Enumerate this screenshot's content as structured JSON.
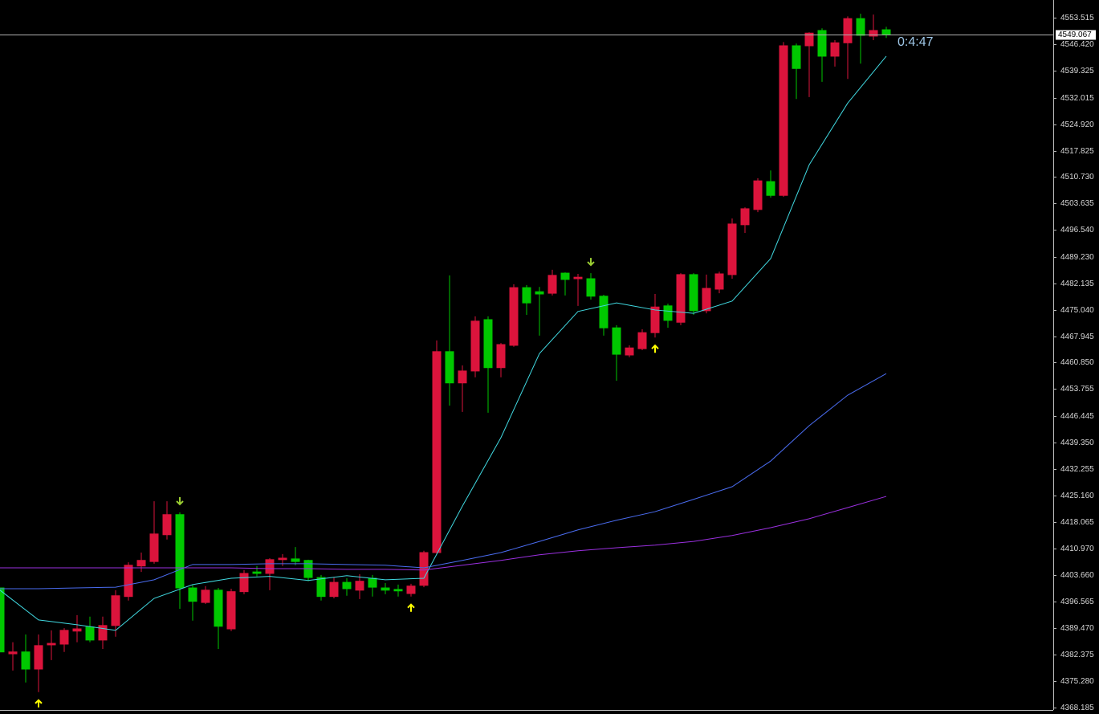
{
  "chart_data": {
    "type": "candlestick",
    "ylim": [
      4367.5,
      4558.3
    ],
    "yticks": [
      4553.515,
      {
        "value": 4546.42,
        "label": "4546.420"
      },
      4539.325,
      4532.015,
      {
        "value": 4524.92,
        "label": "4524.920"
      },
      4517.825,
      {
        "value": 4510.73,
        "label": "4510.730"
      },
      4503.635,
      {
        "value": 4496.54,
        "label": "4496.540"
      },
      {
        "value": 4489.23,
        "label": "4489.230"
      },
      4482.135,
      {
        "value": 4475.04,
        "label": "4475.040"
      },
      4467.945,
      {
        "value": 4460.85,
        "label": "4460.850"
      },
      4453.755,
      4446.445,
      {
        "value": 4439.35,
        "label": "4439.350"
      },
      4432.255,
      {
        "value": 4425.16,
        "label": "4425.160"
      },
      4418.065,
      {
        "value": 4410.97,
        "label": "4410.970"
      },
      {
        "value": 4403.66,
        "label": "4403.660"
      },
      4396.565,
      {
        "value": 4389.47,
        "label": "4389.470"
      },
      4382.375,
      {
        "value": 4375.28,
        "label": "4375.280"
      },
      4368.185
    ],
    "open": [
      4400.3,
      4382.6,
      4383.1,
      4378.5,
      4385.0,
      4385.2,
      4388.7,
      4389.8,
      4386.3,
      4390.2,
      4398.0,
      4406.2,
      4407.4,
      4414.6,
      4420.0,
      4400.3,
      4396.4,
      4399.7,
      4389.3,
      4399.3,
      4404.6,
      4404.2,
      4407.9,
      4408.1,
      4407.7,
      4403.1,
      4398.0,
      4401.8,
      4399.7,
      4402.9,
      4400.3,
      4399.9,
      4398.8,
      4401.0,
      4409.8,
      4463.8,
      4455.4,
      4458.6,
      4472.4,
      4459.5,
      4465.5,
      4481.0,
      4479.9,
      4479.5,
      4484.9,
      4483.4,
      4483.4,
      4478.7,
      4470.2,
      4462.9,
      4464.6,
      4468.9,
      4476.1,
      4471.7,
      4484.5,
      4474.8,
      4480.6,
      4484.5,
      4497.9,
      4502.0,
      4509.5,
      4505.8,
      4546.0,
      4546.0,
      4550.1,
      4543.2,
      4546.8,
      4553.3,
      4548.6,
      4550.3
    ],
    "high": [
      4400.3,
      4385.7,
      4387.8,
      4387.8,
      4388.9,
      4389.5,
      4393.0,
      4392.6,
      4392.6,
      4399.7,
      4407.2,
      4409.8,
      4423.6,
      4423.6,
      4420.6,
      4401.2,
      4400.8,
      4400.3,
      4400.1,
      4405.1,
      4406.2,
      4408.3,
      4409.4,
      4411.3,
      4407.9,
      4403.8,
      4403.1,
      4402.9,
      4404.0,
      4403.8,
      4401.6,
      4401.2,
      4401.4,
      4410.3,
      4466.8,
      4484.3,
      4460.1,
      4473.3,
      4473.3,
      4466.1,
      4481.9,
      4481.7,
      4481.2,
      4485.8,
      4485.1,
      4484.7,
      4484.9,
      4479.1,
      4470.9,
      4465.5,
      4469.8,
      4479.3,
      4476.7,
      4484.9,
      4484.9,
      4484.5,
      4485.3,
      4499.6,
      4502.6,
      4510.4,
      4512.5,
      4547.0,
      4546.6,
      4549.6,
      4550.7,
      4547.5,
      4553.9,
      4554.6,
      4554.4,
      4551.1
    ],
    "low": [
      4383.1,
      4378.1,
      4374.9,
      4372.3,
      4380.9,
      4383.1,
      4385.7,
      4385.7,
      4383.9,
      4387.2,
      4396.9,
      4404.6,
      4406.8,
      4413.3,
      4394.7,
      4391.5,
      4396.0,
      4383.9,
      4388.7,
      4398.6,
      4403.4,
      4399.7,
      4406.2,
      4406.4,
      4402.1,
      4396.9,
      4397.5,
      4398.2,
      4397.3,
      4398.0,
      4398.6,
      4398.0,
      4398.0,
      4400.5,
      4409.4,
      4449.3,
      4447.6,
      4456.9,
      4447.4,
      4456.9,
      4465.1,
      4473.7,
      4468.1,
      4478.9,
      4478.9,
      4476.1,
      4477.8,
      4468.1,
      4456.0,
      4462.3,
      4464.2,
      4467.6,
      4470.2,
      4470.9,
      4473.7,
      4474.1,
      4479.5,
      4483.4,
      4495.7,
      4501.3,
      4505.2,
      4505.4,
      4531.7,
      4532.2,
      4536.3,
      4540.4,
      4537.1,
      4541.2,
      4547.5,
      4548.1
    ],
    "close": [
      4383.1,
      4383.1,
      4378.5,
      4384.8,
      4385.4,
      4388.9,
      4389.3,
      4386.3,
      4390.2,
      4398.2,
      4406.4,
      4407.7,
      4414.8,
      4420.0,
      4400.3,
      4396.7,
      4399.7,
      4390.0,
      4399.3,
      4404.2,
      4404.2,
      4407.9,
      4408.3,
      4407.4,
      4403.1,
      4398.0,
      4401.8,
      4400.1,
      4402.1,
      4400.5,
      4399.7,
      4399.5,
      4400.8,
      4409.8,
      4463.8,
      4455.4,
      4458.6,
      4472.0,
      4459.5,
      4465.7,
      4481.0,
      4476.9,
      4479.3,
      4484.3,
      4483.2,
      4483.8,
      4478.7,
      4470.2,
      4463.1,
      4464.8,
      4468.9,
      4475.8,
      4472.2,
      4484.5,
      4474.8,
      4480.8,
      4484.7,
      4498.1,
      4502.2,
      4509.7,
      4505.8,
      4546.0,
      4539.9,
      4549.4,
      4543.2,
      4546.8,
      4553.3,
      4548.8,
      4550.1,
      4549.0
    ],
    "up_color": "#dc143c",
    "down_color": "#00c800",
    "lines": [
      {
        "color": "#40d8e0",
        "x": [
          0,
          3,
          6,
          9,
          12,
          15,
          18,
          21,
          24,
          27,
          30,
          33,
          36,
          39,
          42,
          45,
          48,
          51,
          54,
          57,
          60,
          63,
          66,
          69
        ],
        "values": [
          4399.7,
          4391.7,
          4390.4,
          4388.9,
          4397.5,
          4401.2,
          4402.9,
          4403.4,
          4402.3,
          4403.6,
          4402.5,
          4402.9,
          4422.3,
          4440.7,
          4463.3,
          4474.6,
          4476.9,
          4475.0,
          4474.1,
          4477.4,
          4488.8,
          4514.0,
          4530.6,
          4543.2
        ]
      },
      {
        "color": "#4a6cf0",
        "x": [
          0,
          3,
          6,
          9,
          12,
          15,
          18,
          21,
          24,
          27,
          30,
          33,
          36,
          39,
          42,
          45,
          48,
          51,
          54,
          57,
          60,
          63,
          66,
          69
        ],
        "values": [
          4400.1,
          4400.1,
          4400.3,
          4400.5,
          4402.5,
          4406.6,
          4406.6,
          4406.8,
          4406.8,
          4406.6,
          4406.4,
          4405.7,
          4407.7,
          4409.8,
          4412.8,
          4415.9,
          4418.5,
          4420.8,
          4424.1,
          4427.5,
          4434.4,
          4443.9,
          4452.1,
          4457.9
        ]
      },
      {
        "color": "#9b30e0",
        "x": [
          0,
          3,
          6,
          9,
          12,
          15,
          18,
          21,
          24,
          27,
          30,
          33,
          36,
          39,
          42,
          45,
          48,
          51,
          54,
          57,
          60,
          63,
          66,
          69
        ],
        "values": [
          4405.7,
          4405.7,
          4405.7,
          4405.7,
          4405.7,
          4405.7,
          4405.7,
          4405.5,
          4405.5,
          4405.3,
          4405.3,
          4405.1,
          4406.4,
          4407.7,
          4409.2,
          4410.3,
          4411.1,
          4411.8,
          4412.8,
          4414.4,
          4416.5,
          4418.9,
          4421.9,
          4424.9
        ]
      }
    ],
    "up_arrows": [
      3,
      32,
      51
    ],
    "down_arrows": [
      14,
      46
    ],
    "up_arrow_color": "#ffff00",
    "down_arrow_color": "#9acd32",
    "price": 4549.067,
    "timer": "0:4:47"
  }
}
